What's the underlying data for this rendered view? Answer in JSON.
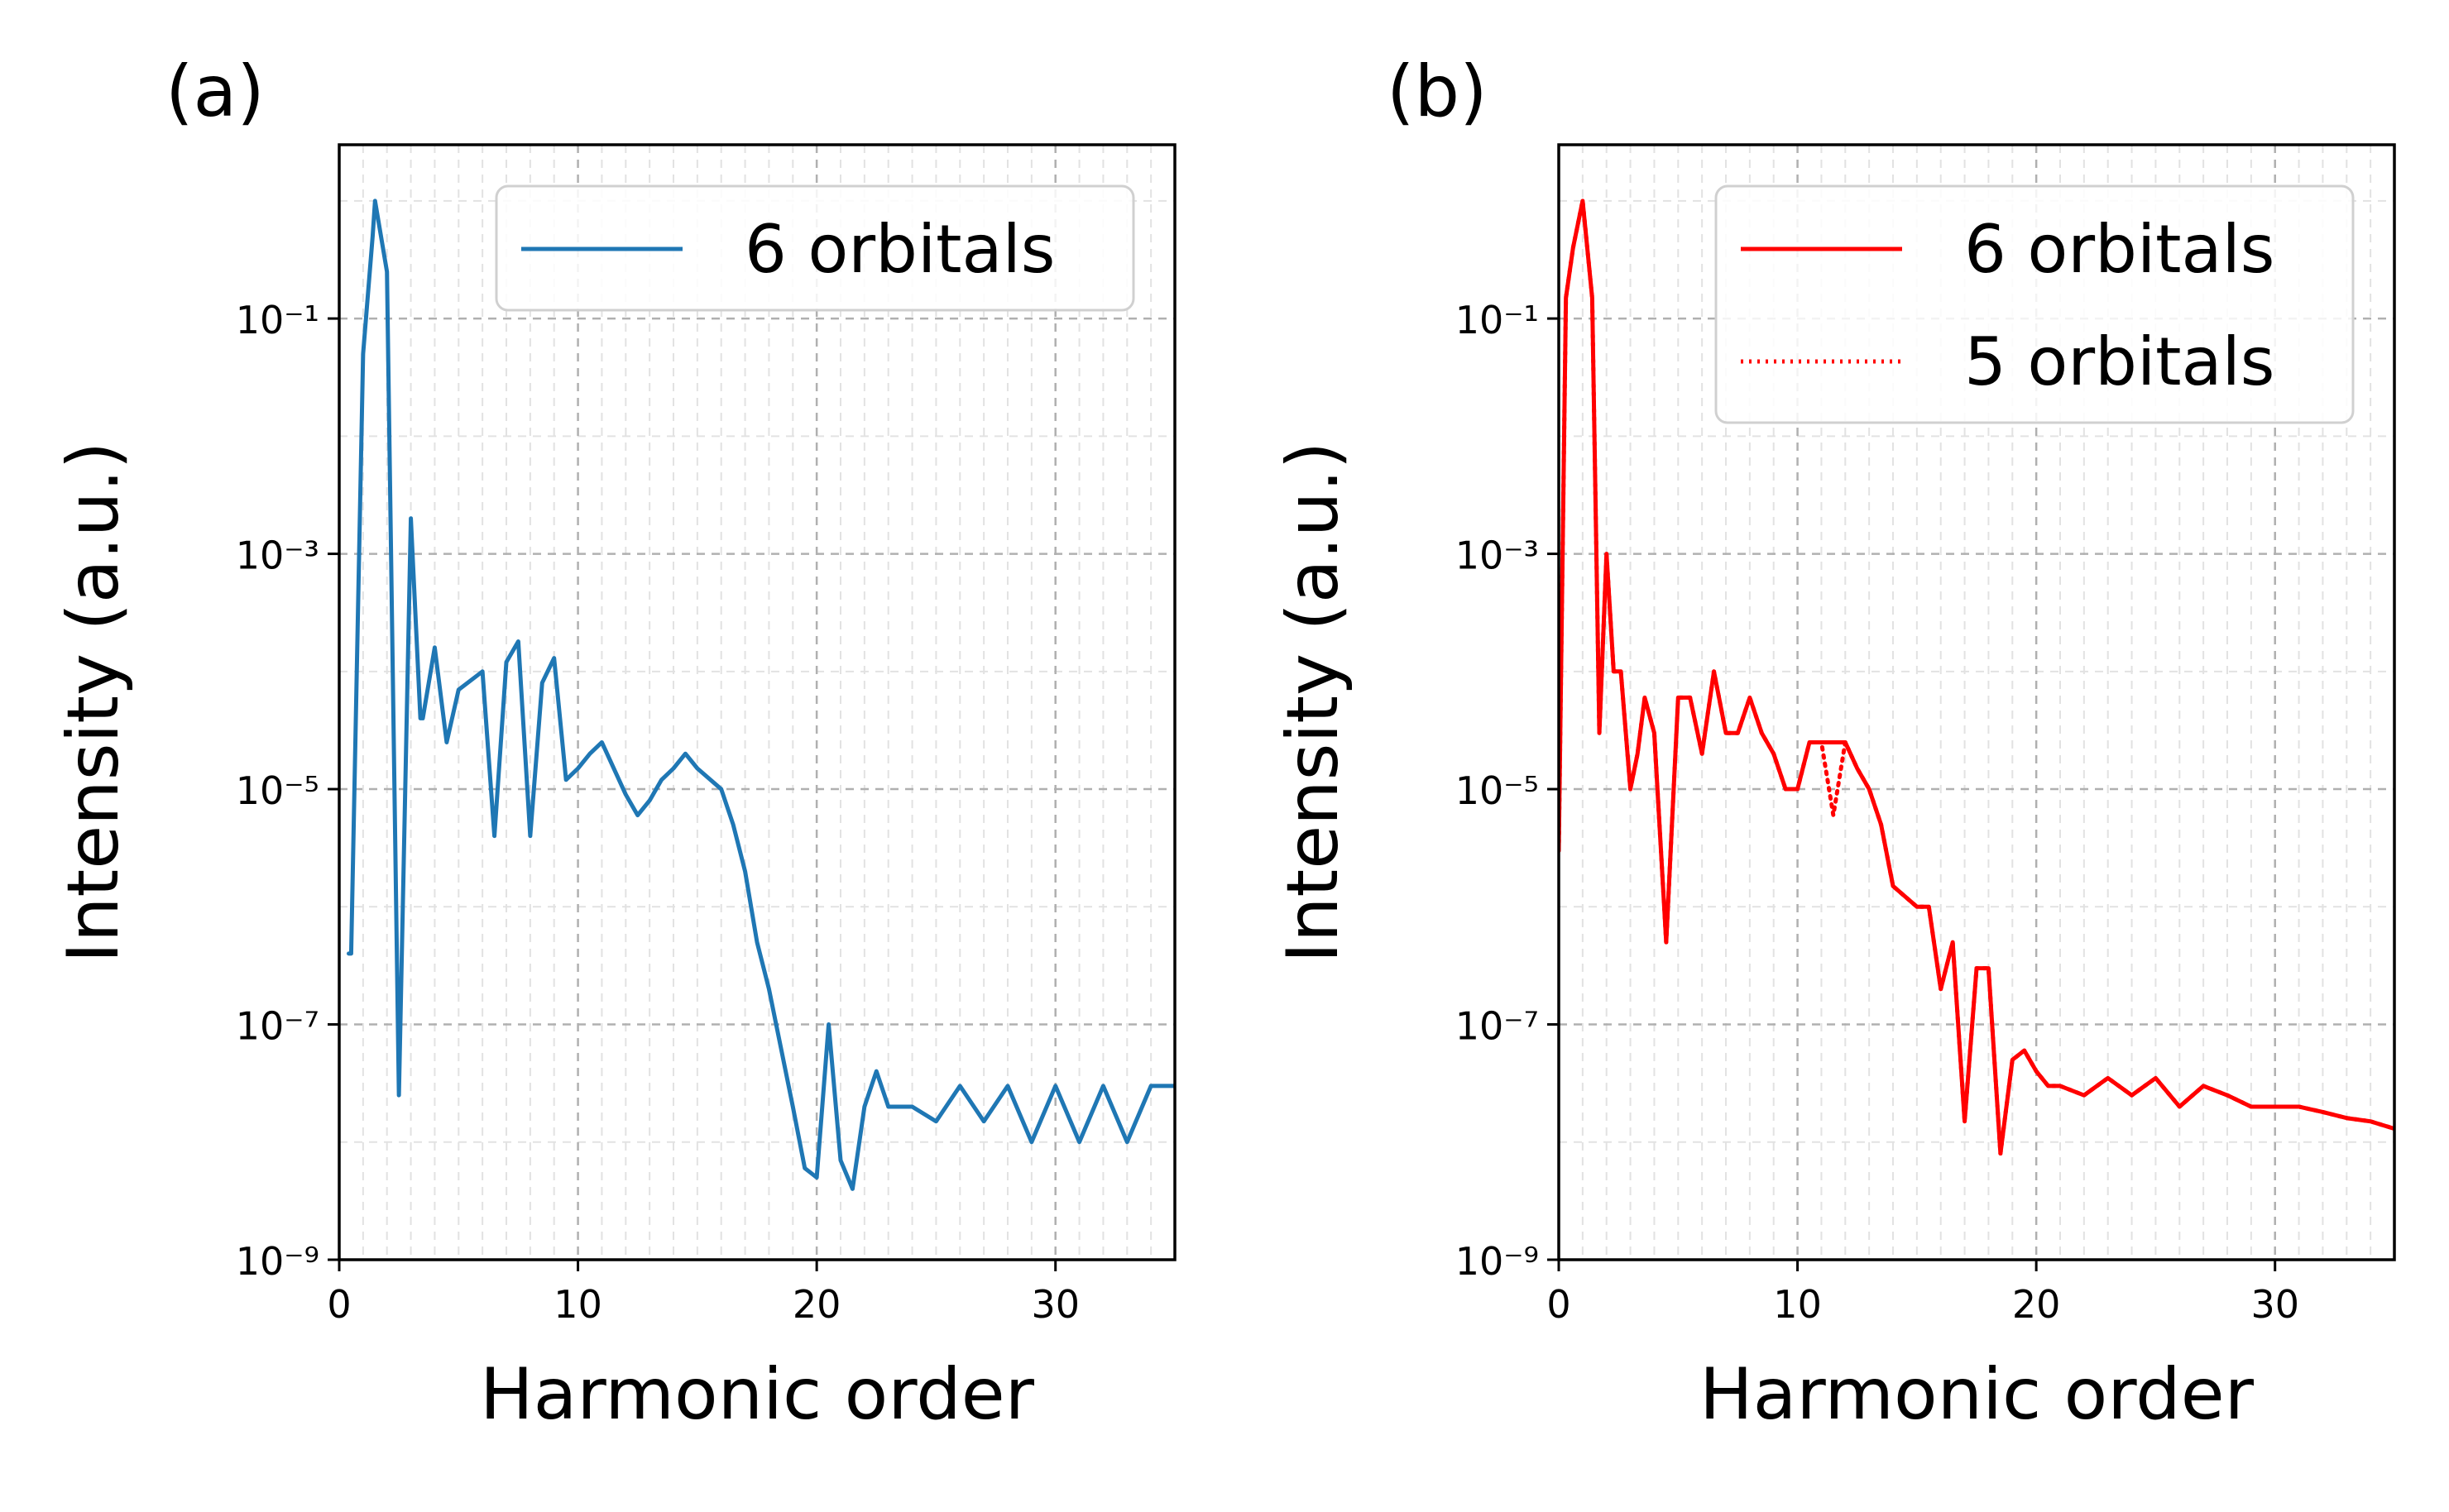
{
  "chart_data": [
    {
      "panel_label": "(a)",
      "type": "line",
      "xlabel": "Harmonic order",
      "ylabel": "Intensity (a.u.)",
      "xlim": [
        0,
        35
      ],
      "ylim": [
        1e-09,
        3
      ],
      "yscale": "log",
      "grid": true,
      "legend_placement": "top-right",
      "xticks": [
        0,
        10,
        20,
        30
      ],
      "yticks": [
        1e-09,
        1e-07,
        1e-05,
        0.001,
        0.1
      ],
      "series": [
        {
          "name": "6 orbitals",
          "color": "#1f77b4",
          "style": "solid",
          "x": [
            0.4,
            0.5,
            1.0,
            1.4,
            1.5,
            2.0,
            2.5,
            3.0,
            3.4,
            3.5,
            4.0,
            4.5,
            5.0,
            6.0,
            6.5,
            7.0,
            7.5,
            8.0,
            8.5,
            9.0,
            9.5,
            10.0,
            10.5,
            11.0,
            12.0,
            12.5,
            13.0,
            13.5,
            14.0,
            14.5,
            15.0,
            16.0,
            16.5,
            17.0,
            17.5,
            18.0,
            19.0,
            19.5,
            20.0,
            20.5,
            21.0,
            21.5,
            22.0,
            22.5,
            23.0,
            24.0,
            25.0,
            26.0,
            27.0,
            28.0,
            29.0,
            30.0,
            31.0,
            32.0,
            33.0,
            34.0,
            35.0
          ],
          "values": [
            4e-07,
            4e-07,
            0.05,
            0.5,
            1.0,
            0.25,
            2.5e-08,
            0.002,
            4e-05,
            4e-05,
            0.00016,
            2.5e-05,
            7e-05,
            0.0001,
            4e-06,
            0.00012,
            0.00018,
            4e-06,
            8e-05,
            0.00013,
            1.2e-05,
            1.5e-05,
            2e-05,
            2.5e-05,
            9e-06,
            6e-06,
            8e-06,
            1.2e-05,
            1.5e-05,
            2e-05,
            1.5e-05,
            1e-05,
            5e-06,
            2e-06,
            5e-07,
            2e-07,
            2e-08,
            6e-09,
            5e-09,
            1e-07,
            7e-09,
            4e-09,
            2e-08,
            4e-08,
            2e-08,
            2e-08,
            1.5e-08,
            3e-08,
            1.5e-08,
            3e-08,
            1e-08,
            3e-08,
            1e-08,
            3e-08,
            1e-08,
            3e-08,
            3e-08
          ]
        }
      ]
    },
    {
      "panel_label": "(b)",
      "type": "line",
      "xlabel": "Harmonic order",
      "ylabel": "Intensity (a.u.)",
      "xlim": [
        0,
        35
      ],
      "ylim": [
        1e-09,
        3
      ],
      "yscale": "log",
      "grid": true,
      "legend_placement": "top-right",
      "xticks": [
        0,
        10,
        20,
        30
      ],
      "yticks": [
        1e-09,
        1e-07,
        1e-05,
        0.001,
        0.1
      ],
      "series": [
        {
          "name": "6 orbitals",
          "color": "#ff0000",
          "style": "solid",
          "x": [
            0.0,
            0.3,
            0.6,
            1.0,
            1.4,
            1.7,
            2.0,
            2.3,
            2.6,
            3.0,
            3.3,
            3.6,
            4.0,
            4.5,
            5.0,
            5.5,
            6.0,
            6.5,
            7.0,
            7.5,
            8.0,
            8.5,
            9.0,
            9.5,
            10.0,
            10.5,
            11.0,
            11.5,
            12.0,
            12.5,
            13.0,
            13.5,
            14.0,
            15.0,
            15.5,
            16.0,
            16.5,
            17.0,
            17.5,
            18.0,
            18.5,
            19.0,
            19.5,
            20.0,
            20.5,
            21.0,
            22.0,
            23.0,
            24.0,
            25.0,
            26.0,
            27.0,
            28.0,
            29.0,
            30.0,
            31.0,
            32.0,
            33.0,
            34.0,
            35.0
          ],
          "values": [
            3e-06,
            0.15,
            0.4,
            1.0,
            0.15,
            3e-05,
            0.001,
            0.0001,
            0.0001,
            1e-05,
            2e-05,
            6e-05,
            3e-05,
            5e-07,
            6e-05,
            6e-05,
            2e-05,
            0.0001,
            3e-05,
            3e-05,
            6e-05,
            3e-05,
            2e-05,
            1e-05,
            1e-05,
            2.5e-05,
            2.5e-05,
            2.5e-05,
            2.5e-05,
            1.5e-05,
            1e-05,
            5e-06,
            1.5e-06,
            1e-06,
            1e-06,
            2e-07,
            5e-07,
            1.5e-08,
            3e-07,
            3e-07,
            8e-09,
            5e-08,
            6e-08,
            4e-08,
            3e-08,
            3e-08,
            2.5e-08,
            3.5e-08,
            2.5e-08,
            3.5e-08,
            2e-08,
            3e-08,
            2.5e-08,
            2e-08,
            2e-08,
            2e-08,
            1.8e-08,
            1.6e-08,
            1.5e-08,
            1.3e-08
          ]
        },
        {
          "name": "5 orbitals",
          "color": "#ff0000",
          "style": "dotted",
          "x": [
            0.0,
            0.3,
            0.6,
            1.0,
            1.4,
            1.7,
            2.0,
            2.3,
            2.6,
            3.0,
            3.3,
            3.6,
            4.0,
            4.5,
            5.0,
            5.5,
            6.0,
            6.5,
            7.0,
            7.5,
            8.0,
            8.5,
            9.0,
            9.5,
            10.0,
            10.5,
            11.0,
            11.5,
            12.0,
            12.5,
            13.0,
            13.5,
            14.0,
            15.0,
            15.5,
            16.0,
            16.5,
            17.0,
            17.5,
            18.0,
            18.5,
            19.0,
            19.5,
            20.0,
            20.5,
            21.0,
            22.0,
            23.0,
            24.0,
            25.0,
            26.0,
            27.0,
            28.0,
            29.0,
            30.0,
            31.0,
            32.0,
            33.0,
            34.0,
            35.0
          ],
          "values": [
            3e-06,
            0.15,
            0.4,
            1.0,
            0.15,
            3e-05,
            0.001,
            0.0001,
            0.0001,
            1e-05,
            2e-05,
            6e-05,
            3e-05,
            5e-07,
            6e-05,
            6e-05,
            2e-05,
            0.0001,
            3e-05,
            3e-05,
            6e-05,
            3e-05,
            2e-05,
            1e-05,
            1e-05,
            2.5e-05,
            2.5e-05,
            6e-06,
            2.5e-05,
            1.5e-05,
            1e-05,
            5e-06,
            1.5e-06,
            1e-06,
            1e-06,
            2e-07,
            5e-07,
            1.5e-08,
            3e-07,
            3e-07,
            8e-09,
            5e-08,
            6e-08,
            4e-08,
            3e-08,
            3e-08,
            2.5e-08,
            3.5e-08,
            2.5e-08,
            3.5e-08,
            2e-08,
            3e-08,
            2.5e-08,
            2e-08,
            2e-08,
            2e-08,
            1.8e-08,
            1.6e-08,
            1.5e-08,
            1.3e-08
          ]
        }
      ]
    }
  ]
}
